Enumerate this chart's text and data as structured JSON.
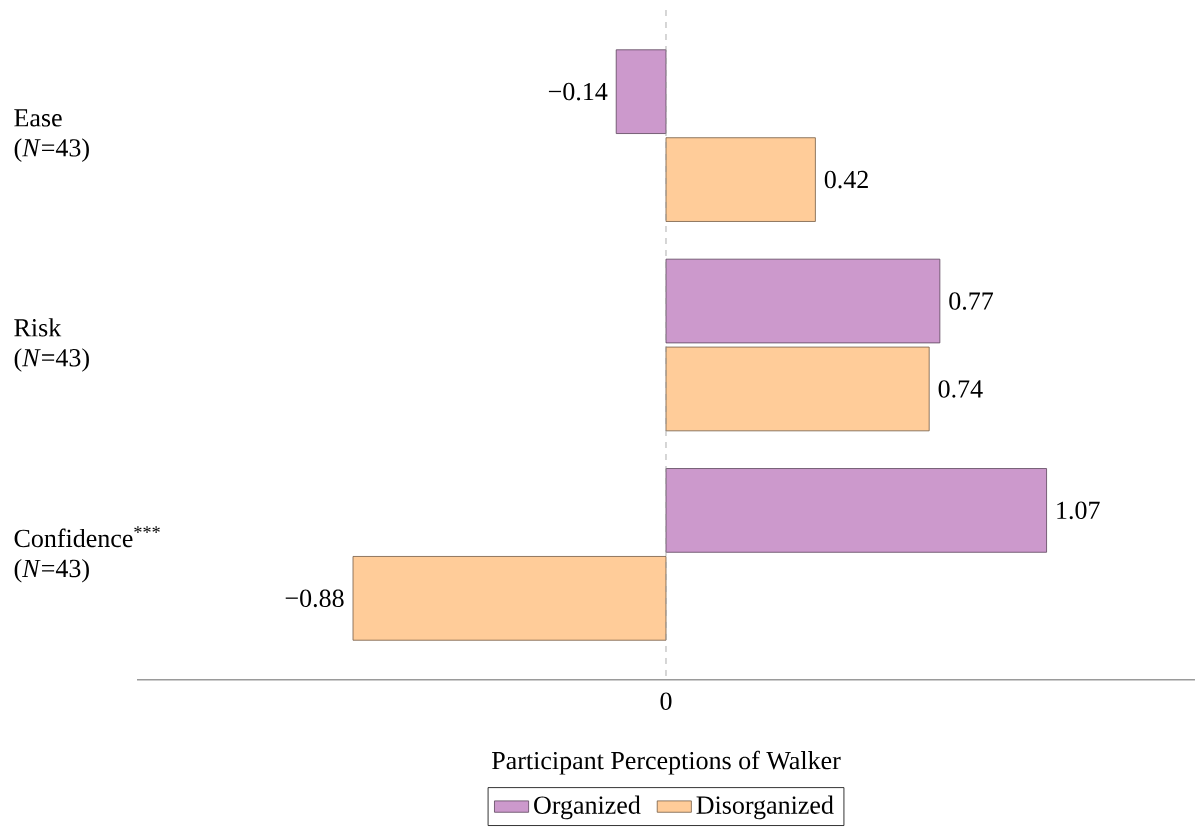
{
  "chart_data": {
    "type": "bar",
    "orientation": "horizontal",
    "categories": [
      "Ease (*N*=43)",
      "Risk (*N*=43)",
      "Confidence$^{***}$ (*N*=43)"
    ],
    "series": [
      {
        "name": "Organized",
        "color": "#cc99cc",
        "values": [
          -0.14,
          0.77,
          1.07
        ],
        "value_labels": [
          "−0.14",
          "0.77",
          "1.07"
        ]
      },
      {
        "name": "Disorganized",
        "color": "#ffcc99",
        "values": [
          0.42,
          0.74,
          -0.88
        ],
        "value_labels": [
          "0.42",
          "0.74",
          "−0.88"
        ]
      }
    ],
    "xlabel": "Participant Perceptions of Walker",
    "annotations": [
      "0"
    ],
    "ref_lines": [
      {
        "axis": "x",
        "value": 0,
        "color": "#999999",
        "line_style": "dashed"
      }
    ],
    "legend": "bottom",
    "grid": false
  }
}
